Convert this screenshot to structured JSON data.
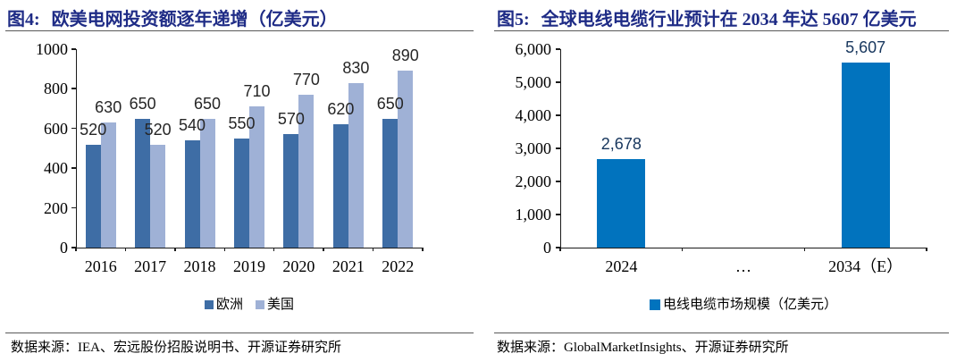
{
  "figures": [
    {
      "label": "图4:",
      "title": "欧美电网投资额逐年递增（亿美元）",
      "source": "数据来源：IEA、宏远股份招股说明书、开源证券研究所"
    },
    {
      "label": "图5:",
      "title": "全球电线电缆行业预计在 2034 年达 5607 亿美元",
      "source": "数据来源：GlobalMarketInsights、开源证券研究所"
    }
  ],
  "chart_data": [
    {
      "type": "bar",
      "title": "欧美电网投资额逐年递增（亿美元）",
      "categories": [
        "2016",
        "2017",
        "2018",
        "2019",
        "2020",
        "2021",
        "2022"
      ],
      "series": [
        {
          "name": "欧洲",
          "color": "#3e6da5",
          "values": [
            520,
            650,
            540,
            550,
            570,
            620,
            650
          ],
          "labels": [
            "520",
            "650",
            "540",
            "550",
            "570",
            "620",
            "650"
          ]
        },
        {
          "name": "美国",
          "color": "#9fb1d6",
          "values": [
            630,
            520,
            650,
            710,
            770,
            830,
            890
          ],
          "labels": [
            "630",
            "520",
            "650",
            "710",
            "770",
            "830",
            "890"
          ]
        }
      ],
      "ylim": [
        0,
        1000
      ],
      "yticks": [
        0,
        200,
        400,
        600,
        800,
        1000
      ],
      "ytick_labels": [
        "0",
        "200",
        "400",
        "600",
        "800",
        "1000"
      ],
      "grid": false,
      "legend_position": "bottom",
      "label_color": "#262626"
    },
    {
      "type": "bar",
      "title": "全球电线电缆行业预计在 2034 年达 5607 亿美元",
      "categories": [
        "2024",
        "…",
        "2034（E）"
      ],
      "series": [
        {
          "name": "电线电缆市场规模（亿美元）",
          "color": "#0173be",
          "values": [
            2678,
            null,
            5607
          ],
          "labels": [
            "2,678",
            "",
            "5,607"
          ]
        }
      ],
      "ylim": [
        0,
        6000
      ],
      "yticks": [
        0,
        1000,
        2000,
        3000,
        4000,
        5000,
        6000
      ],
      "ytick_labels": [
        "0",
        "1,000",
        "2,000",
        "3,000",
        "4,000",
        "5,000",
        "6,000"
      ],
      "grid": false,
      "legend_position": "bottom",
      "label_color": "#17365d"
    }
  ]
}
